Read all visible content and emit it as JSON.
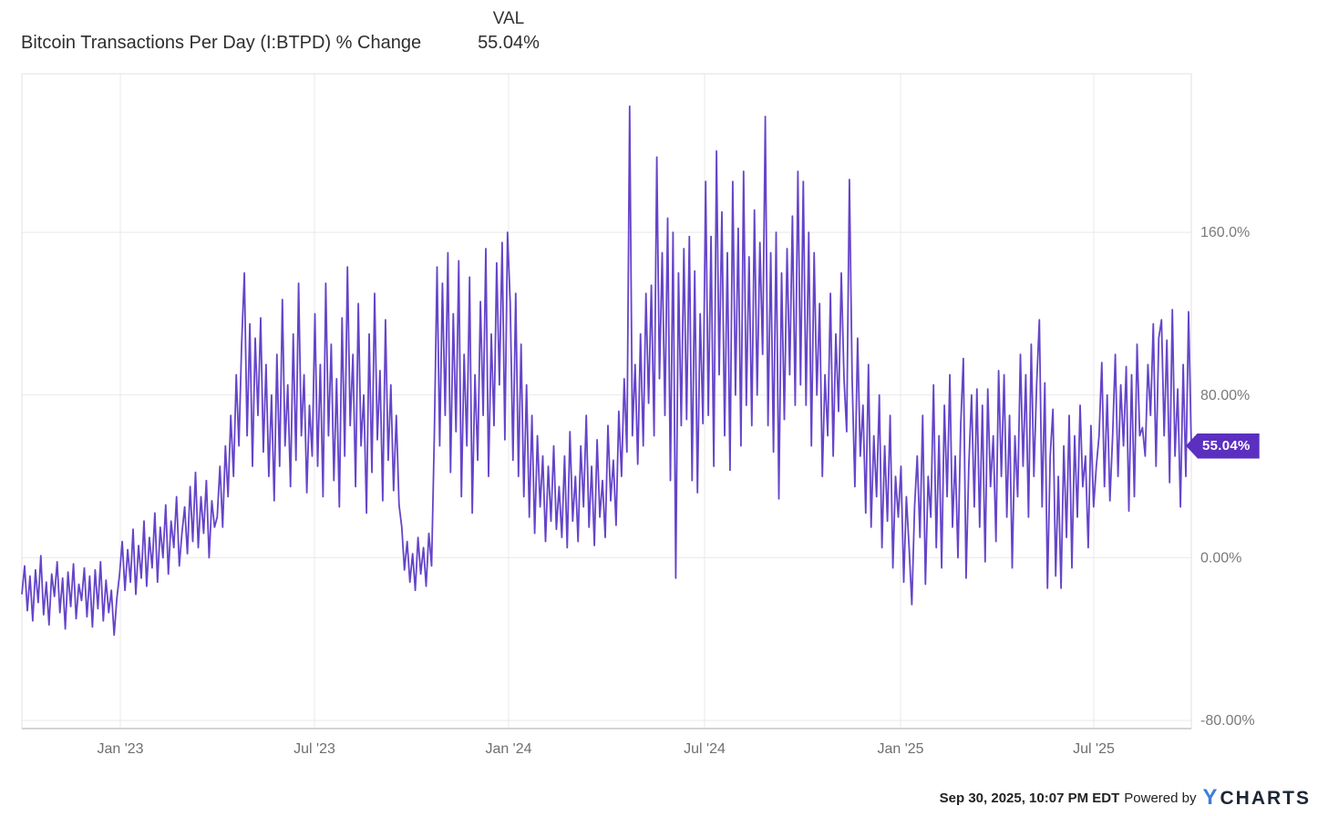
{
  "header": {
    "title": "Bitcoin Transactions Per Day (I:BTPD) % Change",
    "value_label": "VAL",
    "value": "55.04%"
  },
  "badge": {
    "text": "55.04%",
    "color": "#5b2fc0"
  },
  "footer": {
    "timestamp": "Sep 30, 2025, 10:07 PM EDT",
    "powered_by": "Powered by",
    "logo_y": "Y",
    "logo_charts": "CHARTS"
  },
  "chart_data": {
    "type": "line",
    "title": "Bitcoin Transactions Per Day (I:BTPD) % Change",
    "series_name": "VAL",
    "unit": "%",
    "current_value": 55.04,
    "line_color": "#6544c9",
    "grid": true,
    "legend_position": "top",
    "x_range": [
      "Oct '22",
      "Oct '25"
    ],
    "ylim": [
      -84,
      238
    ],
    "y_ticks": [
      {
        "label": "160.0%",
        "value": 160
      },
      {
        "label": "80.00%",
        "value": 80
      },
      {
        "label": "0.00%",
        "value": 0
      },
      {
        "label": "-80.00%",
        "value": -80
      }
    ],
    "x_ticks": [
      {
        "label": "Jan '23",
        "f": 0.0842
      },
      {
        "label": "Jul '23",
        "f": 0.2502
      },
      {
        "label": "Jan '24",
        "f": 0.4162
      },
      {
        "label": "Jul '24",
        "f": 0.5838
      },
      {
        "label": "Jan '25",
        "f": 0.7514
      },
      {
        "label": "Jul '25",
        "f": 0.9166
      }
    ],
    "values": [
      -18,
      -4,
      -26,
      -9,
      -31,
      -6,
      -22,
      1,
      -28,
      -12,
      -33,
      -8,
      -19,
      -2,
      -27,
      -10,
      -35,
      -7,
      -24,
      -3,
      -30,
      -13,
      -21,
      -5,
      -29,
      -9,
      -34,
      -6,
      -25,
      -2,
      -31,
      -11,
      -27,
      -16,
      -38,
      -20,
      -8,
      8,
      -16,
      4,
      -12,
      14,
      -18,
      6,
      -10,
      18,
      -14,
      10,
      -5,
      22,
      -12,
      15,
      0,
      26,
      -8,
      18,
      5,
      30,
      -4,
      12,
      25,
      2,
      35,
      8,
      42,
      5,
      30,
      12,
      38,
      0,
      28,
      15,
      20,
      45,
      15,
      55,
      30,
      70,
      40,
      90,
      55,
      105,
      140,
      60,
      115,
      45,
      108,
      70,
      118,
      52,
      95,
      40,
      80,
      28,
      100,
      45,
      127,
      55,
      85,
      35,
      110,
      48,
      135,
      60,
      90,
      32,
      75,
      50,
      120,
      45,
      95,
      30,
      135,
      60,
      105,
      38,
      88,
      25,
      118,
      50,
      143,
      65,
      100,
      35,
      125,
      55,
      80,
      22,
      110,
      42,
      130,
      58,
      92,
      28,
      117,
      48,
      85,
      33,
      70,
      26,
      15,
      -6,
      8,
      -12,
      2,
      -16,
      10,
      -8,
      5,
      -14,
      12,
      -4,
      60,
      143,
      55,
      135,
      70,
      150,
      42,
      120,
      62,
      146,
      30,
      100,
      55,
      138,
      22,
      90,
      48,
      126,
      70,
      152,
      40,
      110,
      65,
      145,
      85,
      155,
      58,
      160,
      125,
      48,
      130,
      40,
      105,
      30,
      85,
      20,
      70,
      12,
      60,
      25,
      50,
      8,
      45,
      18,
      55,
      14,
      35,
      10,
      50,
      5,
      62,
      18,
      40,
      8,
      55,
      25,
      70,
      15,
      45,
      6,
      58,
      20,
      38,
      10,
      65,
      28,
      48,
      16,
      72,
      40,
      88,
      52,
      222,
      60,
      95,
      46,
      110,
      55,
      130,
      76,
      134,
      60,
      197,
      88,
      150,
      70,
      167,
      38,
      160,
      -10,
      140,
      65,
      152,
      68,
      158,
      38,
      141,
      32,
      120,
      66,
      185,
      70,
      158,
      45,
      200,
      90,
      170,
      60,
      150,
      43,
      185,
      80,
      162,
      55,
      190,
      75,
      148,
      65,
      171,
      80,
      155,
      100,
      217,
      65,
      150,
      52,
      160,
      29,
      140,
      68,
      152,
      90,
      168,
      75,
      190,
      85,
      185,
      75,
      160,
      55,
      150,
      80,
      125,
      40,
      90,
      60,
      130,
      50,
      110,
      72,
      140,
      88,
      62,
      186,
      88,
      35,
      108,
      50,
      75,
      22,
      95,
      15,
      60,
      30,
      80,
      5,
      55,
      18,
      70,
      -5,
      40,
      20,
      45,
      -12,
      30,
      5,
      -23,
      25,
      50,
      10,
      70,
      -13,
      40,
      20,
      85,
      5,
      60,
      -5,
      75,
      30,
      90,
      15,
      50,
      0,
      65,
      98,
      -10,
      45,
      80,
      25,
      83,
      15,
      75,
      -2,
      83,
      35,
      60,
      8,
      92,
      40,
      90,
      20,
      70,
      -5,
      60,
      30,
      100,
      45,
      90,
      20,
      105,
      40,
      85,
      117,
      25,
      86,
      -15,
      50,
      73,
      -9,
      40,
      -15,
      55,
      10,
      70,
      -5,
      60,
      20,
      75,
      35,
      50,
      5,
      65,
      25,
      45,
      60,
      96,
      35,
      80,
      28,
      60,
      100,
      40,
      85,
      55,
      94,
      23,
      90,
      30,
      105,
      60,
      64,
      50,
      95,
      70,
      115,
      45,
      108,
      117,
      60,
      107,
      37,
      122,
      50,
      83,
      25,
      95,
      40,
      121,
      55.04
    ]
  }
}
